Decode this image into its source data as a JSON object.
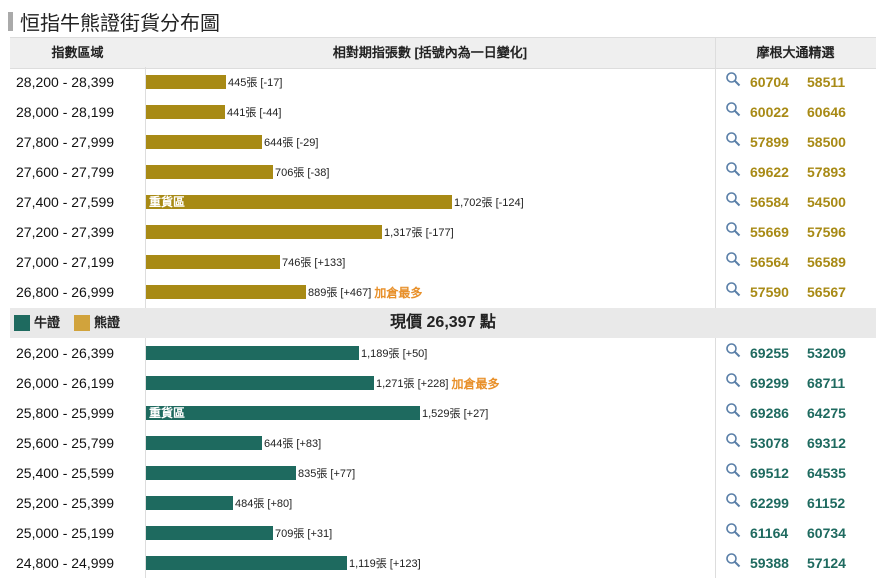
{
  "title": "恒指牛熊證街貨分布圖",
  "header": {
    "range_col": "指數區域",
    "qty_col": "相對期指張數 [括號內為一日變化]",
    "pick_col": "摩根大通精選"
  },
  "colors": {
    "bear": "#a88a15",
    "bull": "#1e6a5f",
    "accent": "#e8902a",
    "bear_swatch": "#d1a33c"
  },
  "legend": {
    "bull_label": "牛證",
    "bear_label": "熊證",
    "current_price": "現價 26,397 點"
  },
  "bear_rows": [
    {
      "range": "28,200 - 28,399",
      "qty": 445,
      "label": "445張 [-17]",
      "zone": "",
      "extra": "",
      "picks": [
        "60704",
        "58511"
      ]
    },
    {
      "range": "28,000 - 28,199",
      "qty": 441,
      "label": "441張 [-44]",
      "zone": "",
      "extra": "",
      "picks": [
        "60022",
        "60646"
      ]
    },
    {
      "range": "27,800 - 27,999",
      "qty": 644,
      "label": "644張 [-29]",
      "zone": "",
      "extra": "",
      "picks": [
        "57899",
        "58500"
      ]
    },
    {
      "range": "27,600 - 27,799",
      "qty": 706,
      "label": "706張 [-38]",
      "zone": "",
      "extra": "",
      "picks": [
        "69622",
        "57893"
      ]
    },
    {
      "range": "27,400 - 27,599",
      "qty": 1702,
      "label": "1,702張 [-124]",
      "zone": "重貨區",
      "extra": "",
      "picks": [
        "56584",
        "54500"
      ]
    },
    {
      "range": "27,200 - 27,399",
      "qty": 1317,
      "label": "1,317張 [-177]",
      "zone": "",
      "extra": "",
      "picks": [
        "55669",
        "57596"
      ]
    },
    {
      "range": "27,000 - 27,199",
      "qty": 746,
      "label": "746張 [+133]",
      "zone": "",
      "extra": "",
      "picks": [
        "56564",
        "56589"
      ]
    },
    {
      "range": "26,800 - 26,999",
      "qty": 889,
      "label": "889張 [+467]",
      "zone": "",
      "extra": "加倉最多",
      "picks": [
        "57590",
        "56567"
      ]
    }
  ],
  "bull_rows": [
    {
      "range": "26,200 - 26,399",
      "qty": 1189,
      "label": "1,189張 [+50]",
      "zone": "",
      "extra": "",
      "picks": [
        "69255",
        "53209"
      ]
    },
    {
      "range": "26,000 - 26,199",
      "qty": 1271,
      "label": "1,271張 [+228]",
      "zone": "",
      "extra": "加倉最多",
      "picks": [
        "69299",
        "68711"
      ]
    },
    {
      "range": "25,800 - 25,999",
      "qty": 1529,
      "label": "1,529張 [+27]",
      "zone": "重貨區",
      "extra": "",
      "picks": [
        "69286",
        "64275"
      ]
    },
    {
      "range": "25,600 - 25,799",
      "qty": 644,
      "label": "644張 [+83]",
      "zone": "",
      "extra": "",
      "picks": [
        "53078",
        "69312"
      ]
    },
    {
      "range": "25,400 - 25,599",
      "qty": 835,
      "label": "835張 [+77]",
      "zone": "",
      "extra": "",
      "picks": [
        "69512",
        "64535"
      ]
    },
    {
      "range": "25,200 - 25,399",
      "qty": 484,
      "label": "484張 [+80]",
      "zone": "",
      "extra": "",
      "picks": [
        "62299",
        "61152"
      ]
    },
    {
      "range": "25,000 - 25,199",
      "qty": 709,
      "label": "709張 [+31]",
      "zone": "",
      "extra": "",
      "picks": [
        "61164",
        "60734"
      ]
    },
    {
      "range": "24,800 - 24,999",
      "qty": 1119,
      "label": "1,119張 [+123]",
      "zone": "",
      "extra": "",
      "picks": [
        "59388",
        "57124"
      ]
    }
  ]
}
